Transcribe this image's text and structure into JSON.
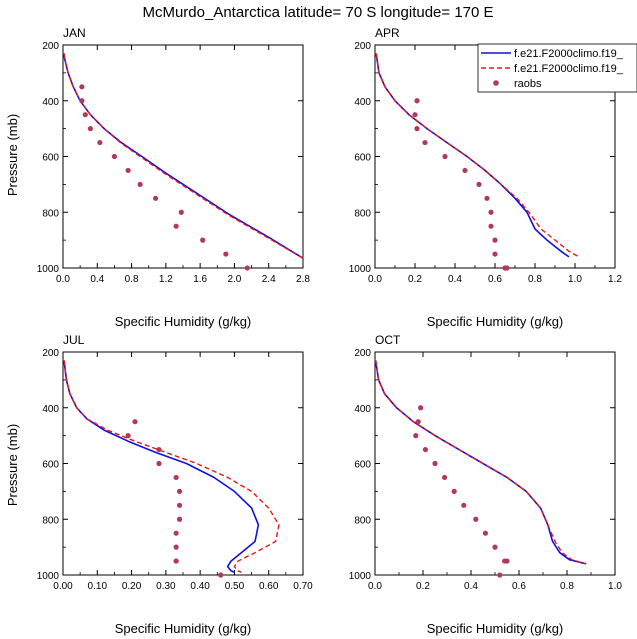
{
  "title": "McMurdo_Antarctica  latitude= 70 S longitude= 170 E",
  "colors": {
    "model_a": "#1010e0",
    "model_b": "#e81818",
    "raobs": "#b03a5a"
  },
  "chart_data": [
    {
      "type": "line",
      "panel_label": "JAN",
      "xlabel": "Specific Humidity (g/kg)",
      "ylabel": "Pressure (mb)",
      "xlim": [
        0,
        2.8
      ],
      "ylim": [
        200,
        1000
      ],
      "y_inverted": true,
      "xticks": [
        "0.0",
        "0.4",
        "0.8",
        "1.2",
        "1.6",
        "2.0",
        "2.4",
        "2.8"
      ],
      "yticks": [
        "200",
        "400",
        "600",
        "800",
        "1000"
      ],
      "series": [
        {
          "style": "solid",
          "color": "#1010e0",
          "x": [
            0.01,
            0.02,
            0.06,
            0.12,
            0.2,
            0.32,
            0.48,
            0.68,
            0.92,
            1.2,
            1.55,
            1.95,
            2.4,
            2.8
          ],
          "y": [
            230,
            250,
            300,
            350,
            400,
            450,
            500,
            550,
            600,
            660,
            730,
            810,
            890,
            965
          ]
        },
        {
          "style": "dashed",
          "color": "#e81818",
          "x": [
            0.01,
            0.02,
            0.06,
            0.12,
            0.2,
            0.32,
            0.48,
            0.67,
            0.9,
            1.18,
            1.53,
            1.93,
            2.38,
            2.8
          ],
          "y": [
            230,
            250,
            300,
            350,
            400,
            450,
            500,
            550,
            600,
            660,
            730,
            810,
            890,
            965
          ]
        },
        {
          "name": "raobs",
          "style": "markers",
          "color": "#b03a5a",
          "x": [
            0.22,
            0.22,
            0.26,
            0.32,
            0.43,
            0.6,
            0.76,
            0.9,
            1.08,
            1.38,
            1.32,
            1.63,
            1.9,
            2.15
          ],
          "y": [
            350,
            400,
            450,
            500,
            550,
            600,
            650,
            700,
            750,
            800,
            850,
            900,
            950,
            1000
          ]
        }
      ]
    },
    {
      "type": "line",
      "panel_label": "APR",
      "xlabel": "Specific Humidity (g/kg)",
      "ylabel": "",
      "xlim": [
        0,
        1.2
      ],
      "ylim": [
        200,
        1000
      ],
      "y_inverted": true,
      "xticks": [
        "0.0",
        "0.2",
        "0.4",
        "0.6",
        "0.8",
        "1.0",
        "1.2"
      ],
      "yticks": [
        "200",
        "400",
        "600",
        "800",
        "1000"
      ],
      "legend": [
        "f.e21.F2000climo.f19_",
        "f.e21.F2000climo.f19_",
        "raobs"
      ],
      "legend_position": "top-right",
      "series": [
        {
          "style": "solid",
          "color": "#1010e0",
          "x": [
            0.005,
            0.01,
            0.02,
            0.05,
            0.1,
            0.17,
            0.26,
            0.36,
            0.46,
            0.55,
            0.63,
            0.7,
            0.76,
            0.78,
            0.8,
            0.86,
            0.93,
            0.97
          ],
          "y": [
            230,
            250,
            300,
            350,
            400,
            450,
            500,
            550,
            600,
            650,
            700,
            750,
            800,
            830,
            860,
            900,
            940,
            960
          ]
        },
        {
          "style": "dashed",
          "color": "#e81818",
          "x": [
            0.005,
            0.01,
            0.02,
            0.05,
            0.1,
            0.17,
            0.26,
            0.36,
            0.46,
            0.55,
            0.63,
            0.71,
            0.77,
            0.8,
            0.83,
            0.9,
            0.97,
            1.02
          ],
          "y": [
            230,
            250,
            300,
            350,
            400,
            450,
            500,
            550,
            600,
            650,
            700,
            750,
            800,
            830,
            860,
            900,
            940,
            960
          ]
        },
        {
          "name": "raobs",
          "style": "markers",
          "color": "#b03a5a",
          "x": [
            0.21,
            0.2,
            0.21,
            0.25,
            0.35,
            0.45,
            0.52,
            0.56,
            0.58,
            0.58,
            0.6,
            0.6,
            0.65,
            0.66
          ],
          "y": [
            400,
            450,
            500,
            550,
            600,
            650,
            700,
            750,
            800,
            850,
            900,
            950,
            1000,
            1000
          ]
        }
      ]
    },
    {
      "type": "line",
      "panel_label": "JUL",
      "xlabel": "Specific Humidity (g/kg)",
      "ylabel": "Pressure (mb)",
      "xlim": [
        0,
        0.7
      ],
      "ylim": [
        200,
        1000
      ],
      "y_inverted": true,
      "xticks": [
        "0.00",
        "0.10",
        "0.20",
        "0.30",
        "0.40",
        "0.50",
        "0.60",
        "0.70"
      ],
      "yticks": [
        "200",
        "400",
        "600",
        "800",
        "1000"
      ],
      "series": [
        {
          "style": "solid",
          "color": "#1010e0",
          "x": [
            0.003,
            0.005,
            0.01,
            0.02,
            0.04,
            0.07,
            0.12,
            0.19,
            0.27,
            0.36,
            0.44,
            0.5,
            0.55,
            0.57,
            0.56,
            0.52,
            0.49,
            0.48,
            0.49,
            0.5
          ],
          "y": [
            230,
            250,
            300,
            350,
            400,
            440,
            480,
            520,
            560,
            600,
            650,
            700,
            760,
            820,
            880,
            920,
            950,
            970,
            985,
            990
          ]
        },
        {
          "style": "dashed",
          "color": "#e81818",
          "x": [
            0.003,
            0.005,
            0.01,
            0.02,
            0.04,
            0.07,
            0.13,
            0.21,
            0.3,
            0.39,
            0.48,
            0.55,
            0.6,
            0.63,
            0.62,
            0.56,
            0.51,
            0.5,
            0.51,
            0.52
          ],
          "y": [
            230,
            250,
            300,
            350,
            400,
            440,
            480,
            520,
            560,
            600,
            650,
            700,
            760,
            820,
            880,
            920,
            950,
            970,
            985,
            990
          ]
        },
        {
          "name": "raobs",
          "style": "markers",
          "color": "#b03a5a",
          "x": [
            0.21,
            0.19,
            0.28,
            0.28,
            0.33,
            0.34,
            0.34,
            0.34,
            0.33,
            0.33,
            0.33,
            0.33,
            0.46
          ],
          "y": [
            450,
            500,
            550,
            600,
            650,
            700,
            750,
            800,
            850,
            900,
            950,
            950,
            1000
          ]
        }
      ]
    },
    {
      "type": "line",
      "panel_label": "OCT",
      "xlabel": "Specific Humidity (g/kg)",
      "ylabel": "",
      "xlim": [
        0,
        1.0
      ],
      "ylim": [
        200,
        1000
      ],
      "y_inverted": true,
      "xticks": [
        "0.0",
        "0.2",
        "0.4",
        "0.6",
        "0.8",
        "1.0"
      ],
      "yticks": [
        "200",
        "400",
        "600",
        "800",
        "1000"
      ],
      "series": [
        {
          "style": "solid",
          "color": "#1010e0",
          "x": [
            0.003,
            0.006,
            0.015,
            0.04,
            0.09,
            0.16,
            0.25,
            0.35,
            0.45,
            0.55,
            0.63,
            0.69,
            0.72,
            0.74,
            0.77,
            0.81,
            0.88
          ],
          "y": [
            230,
            250,
            300,
            350,
            400,
            450,
            500,
            550,
            600,
            650,
            700,
            760,
            820,
            880,
            920,
            945,
            960
          ]
        },
        {
          "style": "dashed",
          "color": "#e81818",
          "x": [
            0.003,
            0.006,
            0.015,
            0.04,
            0.09,
            0.16,
            0.25,
            0.35,
            0.45,
            0.55,
            0.63,
            0.69,
            0.72,
            0.75,
            0.78,
            0.82,
            0.88
          ],
          "y": [
            230,
            250,
            300,
            350,
            400,
            450,
            500,
            550,
            600,
            650,
            700,
            760,
            820,
            880,
            920,
            945,
            960
          ]
        },
        {
          "name": "raobs",
          "style": "markers",
          "color": "#b03a5a",
          "x": [
            0.19,
            0.18,
            0.17,
            0.21,
            0.25,
            0.29,
            0.33,
            0.37,
            0.42,
            0.46,
            0.5,
            0.54,
            0.55,
            0.52
          ],
          "y": [
            400,
            450,
            500,
            550,
            600,
            650,
            700,
            750,
            800,
            850,
            900,
            950,
            950,
            1000
          ]
        }
      ]
    }
  ]
}
